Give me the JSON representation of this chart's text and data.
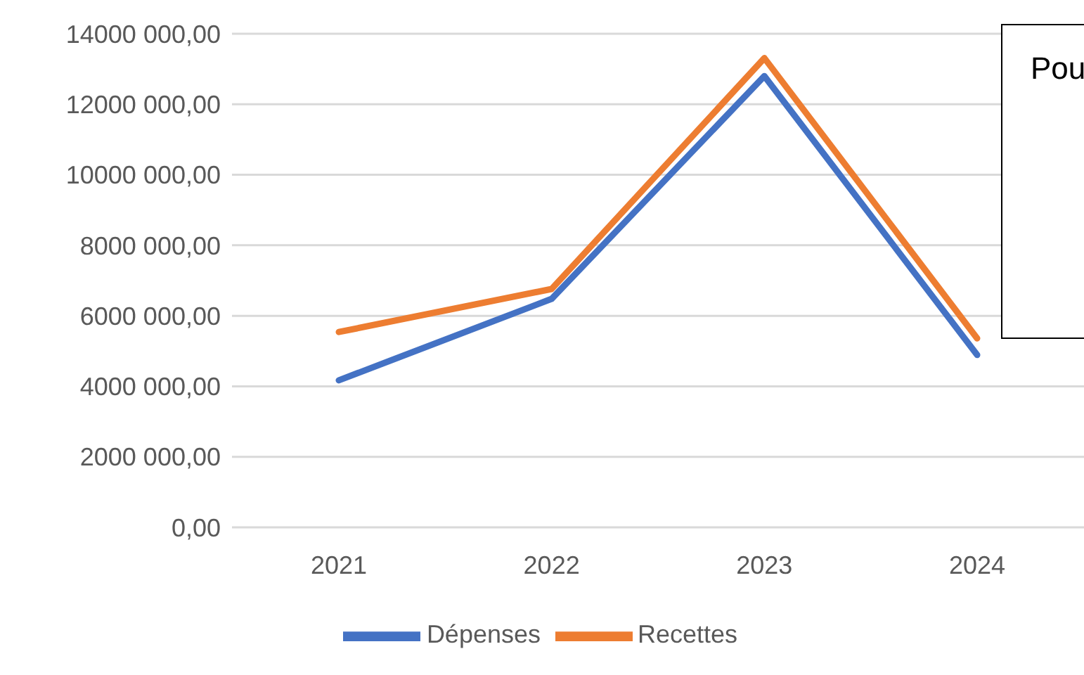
{
  "chart_data": {
    "type": "line",
    "categories": [
      "2021",
      "2022",
      "2023",
      "2024"
    ],
    "series": [
      {
        "name": "Dépenses",
        "color": "#4472c4",
        "values": [
          4170000,
          6480000,
          12800000,
          4890000
        ]
      },
      {
        "name": "Recettes",
        "color": "#ed7d31",
        "values": [
          5540000,
          6760000,
          13310000,
          5360000
        ]
      }
    ],
    "ylim": [
      0,
      14000000
    ],
    "yticks": [
      {
        "value": 0,
        "label": "0,00"
      },
      {
        "value": 2000000,
        "label": "2000 000,00"
      },
      {
        "value": 4000000,
        "label": "4000 000,00"
      },
      {
        "value": 6000000,
        "label": "6000 000,00"
      },
      {
        "value": 8000000,
        "label": "8000 000,00"
      },
      {
        "value": 10000000,
        "label": "10000 000,00"
      },
      {
        "value": 12000000,
        "label": "12000 000,00"
      },
      {
        "value": 14000000,
        "label": "14000 000,00"
      }
    ],
    "grid": "y",
    "legend": "bottom",
    "marker": "none",
    "line_style": "solid",
    "annotations": [
      "Pou"
    ]
  }
}
